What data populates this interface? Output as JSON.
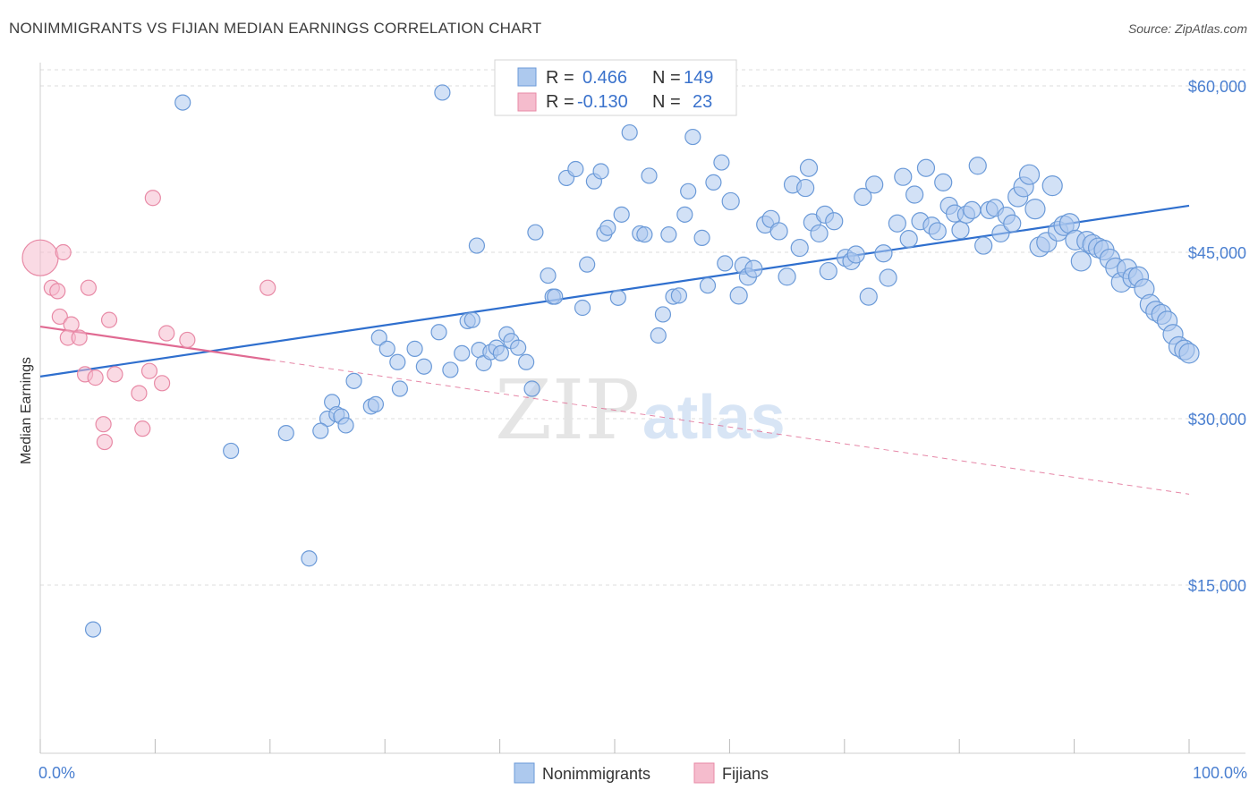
{
  "title": "NONIMMIGRANTS VS FIJIAN MEDIAN EARNINGS CORRELATION CHART",
  "source": "Source: ZipAtlas.com",
  "watermark": {
    "zip": "ZIP",
    "atlas": "atlas"
  },
  "colors": {
    "blue_fill": "#adc9ee",
    "blue_stroke": "#6b9ad8",
    "blue_line": "#2f6fce",
    "pink_fill": "#f5bccd",
    "pink_stroke": "#e88aa6",
    "pink_line": "#e06a92",
    "axis_text": "#4a7fd0",
    "grid": "#dddddd"
  },
  "legend": {
    "rows": [
      {
        "r_label": "R = ",
        "r_value": "0.466",
        "n_label": "N = ",
        "n_value": "149",
        "color": "blue"
      },
      {
        "r_label": "R = ",
        "r_value": "-0.130",
        "n_label": "N = ",
        "n_value": "23",
        "color": "pink"
      }
    ]
  },
  "chart_data": {
    "type": "scatter",
    "title": "NONIMMIGRANTS VS FIJIAN MEDIAN EARNINGS CORRELATION CHART",
    "xlabel": "",
    "ylabel": "Median Earnings",
    "xlim": [
      0,
      100
    ],
    "ylim": [
      2500,
      63000
    ],
    "x_tick_labels": [
      "0.0%",
      "100.0%"
    ],
    "y_ticks": [
      15000,
      30000,
      45000,
      60000
    ],
    "y_tick_labels": [
      "$15,000",
      "$30,000",
      "$45,000",
      "$60,000"
    ],
    "grid": true,
    "legend_position": "bottom-center",
    "series": [
      {
        "name": "Nonimmigrants",
        "color": "blue",
        "trend": {
          "x0": 0,
          "y0": 33800,
          "x1": 100,
          "y1": 49200
        },
        "points": [
          [
            12.4,
            58500
          ],
          [
            35,
            59400
          ],
          [
            51,
            59000
          ],
          [
            51.3,
            55800
          ],
          [
            56.8,
            55400
          ],
          [
            4.6,
            11000
          ],
          [
            16.6,
            27100
          ],
          [
            21.4,
            28700
          ],
          [
            23.4,
            17400
          ],
          [
            25,
            30000
          ],
          [
            25.4,
            31500
          ],
          [
            24.4,
            28900
          ],
          [
            25.8,
            30400
          ],
          [
            26.2,
            30200
          ],
          [
            26.6,
            29400
          ],
          [
            27.3,
            33400
          ],
          [
            28.8,
            31100
          ],
          [
            29.2,
            31300
          ],
          [
            29.5,
            37300
          ],
          [
            30.2,
            36300
          ],
          [
            31.1,
            35100
          ],
          [
            31.3,
            32700
          ],
          [
            32.6,
            36300
          ],
          [
            33.4,
            34700
          ],
          [
            34.7,
            37800
          ],
          [
            35.7,
            34400
          ],
          [
            36.7,
            35900
          ],
          [
            37.2,
            38800
          ],
          [
            37.6,
            38900
          ],
          [
            38.2,
            36200
          ],
          [
            38.6,
            35000
          ],
          [
            39.2,
            36000
          ],
          [
            39.7,
            36400
          ],
          [
            40.1,
            35900
          ],
          [
            40.6,
            37600
          ],
          [
            41,
            37000
          ],
          [
            41.6,
            36400
          ],
          [
            42.3,
            35100
          ],
          [
            42.8,
            32700
          ],
          [
            38,
            45600
          ],
          [
            43.1,
            46800
          ],
          [
            44.2,
            42900
          ],
          [
            44.6,
            41000
          ],
          [
            44.8,
            41000
          ],
          [
            45.8,
            51700
          ],
          [
            46.6,
            52500
          ],
          [
            47.2,
            40000
          ],
          [
            47.6,
            43900
          ],
          [
            48.2,
            51400
          ],
          [
            48.8,
            52300
          ],
          [
            49.1,
            46700
          ],
          [
            49.4,
            47200
          ],
          [
            50.3,
            40900
          ],
          [
            50.6,
            48400
          ],
          [
            52.2,
            46700
          ],
          [
            52.6,
            46600
          ],
          [
            53,
            51900
          ],
          [
            53.8,
            37500
          ],
          [
            54.2,
            39400
          ],
          [
            54.7,
            46600
          ],
          [
            55.1,
            41000
          ],
          [
            55.6,
            41100
          ],
          [
            56.1,
            48400
          ],
          [
            56.4,
            50500
          ],
          [
            57.6,
            46300
          ],
          [
            58.1,
            42000
          ],
          [
            58.6,
            51300
          ],
          [
            59.3,
            53100
          ],
          [
            59.6,
            44000
          ],
          [
            60.1,
            49600
          ],
          [
            60.8,
            41100
          ],
          [
            61.2,
            43800
          ],
          [
            61.6,
            42800
          ],
          [
            62.1,
            43500
          ],
          [
            63.1,
            47500
          ],
          [
            63.6,
            48000
          ],
          [
            64.3,
            46900
          ],
          [
            65,
            42800
          ],
          [
            65.5,
            51100
          ],
          [
            66.1,
            45400
          ],
          [
            66.6,
            50800
          ],
          [
            66.9,
            52600
          ],
          [
            67.2,
            47700
          ],
          [
            67.8,
            46700
          ],
          [
            68.3,
            48400
          ],
          [
            68.6,
            43300
          ],
          [
            69.1,
            47800
          ],
          [
            70.1,
            44500
          ],
          [
            70.6,
            44200
          ],
          [
            71,
            44800
          ],
          [
            71.6,
            50000
          ],
          [
            72.1,
            41000
          ],
          [
            72.6,
            51100
          ],
          [
            73.4,
            44900
          ],
          [
            73.8,
            42700
          ],
          [
            74.6,
            47600
          ],
          [
            75.1,
            51800
          ],
          [
            75.6,
            46200
          ],
          [
            76.1,
            50200
          ],
          [
            76.6,
            47800
          ],
          [
            77.1,
            52600
          ],
          [
            77.6,
            47400
          ],
          [
            78.1,
            46900
          ],
          [
            78.6,
            51300
          ],
          [
            79.1,
            49200
          ],
          [
            79.6,
            48500
          ],
          [
            80.1,
            47000
          ],
          [
            80.6,
            48400
          ],
          [
            81.1,
            48800
          ],
          [
            81.6,
            52800
          ],
          [
            82.1,
            45600
          ],
          [
            82.6,
            48800
          ],
          [
            83.1,
            49000
          ],
          [
            83.6,
            46700
          ],
          [
            84.1,
            48300
          ],
          [
            84.6,
            47600
          ],
          [
            85.1,
            50000
          ],
          [
            85.6,
            50900
          ],
          [
            86.1,
            52000
          ],
          [
            86.6,
            48900
          ],
          [
            87,
            45500
          ],
          [
            87.6,
            45900
          ],
          [
            88.1,
            51000
          ],
          [
            88.6,
            46900
          ],
          [
            89.1,
            47400
          ],
          [
            89.6,
            47600
          ],
          [
            90.1,
            46100
          ],
          [
            90.6,
            44200
          ],
          [
            91.1,
            46000
          ],
          [
            91.6,
            45700
          ],
          [
            92.1,
            45400
          ],
          [
            92.6,
            45200
          ],
          [
            93.1,
            44400
          ],
          [
            93.6,
            43600
          ],
          [
            94.1,
            42300
          ],
          [
            94.6,
            43500
          ],
          [
            95.1,
            42700
          ],
          [
            95.6,
            42800
          ],
          [
            96.1,
            41700
          ],
          [
            96.6,
            40300
          ],
          [
            97.1,
            39700
          ],
          [
            97.6,
            39400
          ],
          [
            98.1,
            38800
          ],
          [
            98.6,
            37600
          ],
          [
            99.1,
            36500
          ],
          [
            99.6,
            36200
          ],
          [
            100,
            35900
          ]
        ]
      },
      {
        "name": "Fijians",
        "color": "pink",
        "trend": {
          "x0": 0,
          "y0": 38300,
          "x1": 20,
          "y1": 35300
        },
        "trend_dashed": {
          "x0": 20,
          "y0": 35300,
          "x1": 100,
          "y1": 23200
        },
        "points": [
          [
            0,
            44500
          ],
          [
            2,
            45000
          ],
          [
            1,
            41800
          ],
          [
            1.5,
            41500
          ],
          [
            1.7,
            39200
          ],
          [
            2.7,
            38500
          ],
          [
            2.4,
            37300
          ],
          [
            3.4,
            37300
          ],
          [
            4.2,
            41800
          ],
          [
            6,
            38900
          ],
          [
            3.9,
            34000
          ],
          [
            4.8,
            33700
          ],
          [
            6.5,
            34000
          ],
          [
            5.5,
            29500
          ],
          [
            5.6,
            27900
          ],
          [
            8.6,
            32300
          ],
          [
            8.9,
            29100
          ],
          [
            9.5,
            34300
          ],
          [
            10.6,
            33200
          ],
          [
            11,
            37700
          ],
          [
            12.8,
            37100
          ],
          [
            9.8,
            49900
          ],
          [
            19.8,
            41800
          ]
        ]
      }
    ]
  }
}
